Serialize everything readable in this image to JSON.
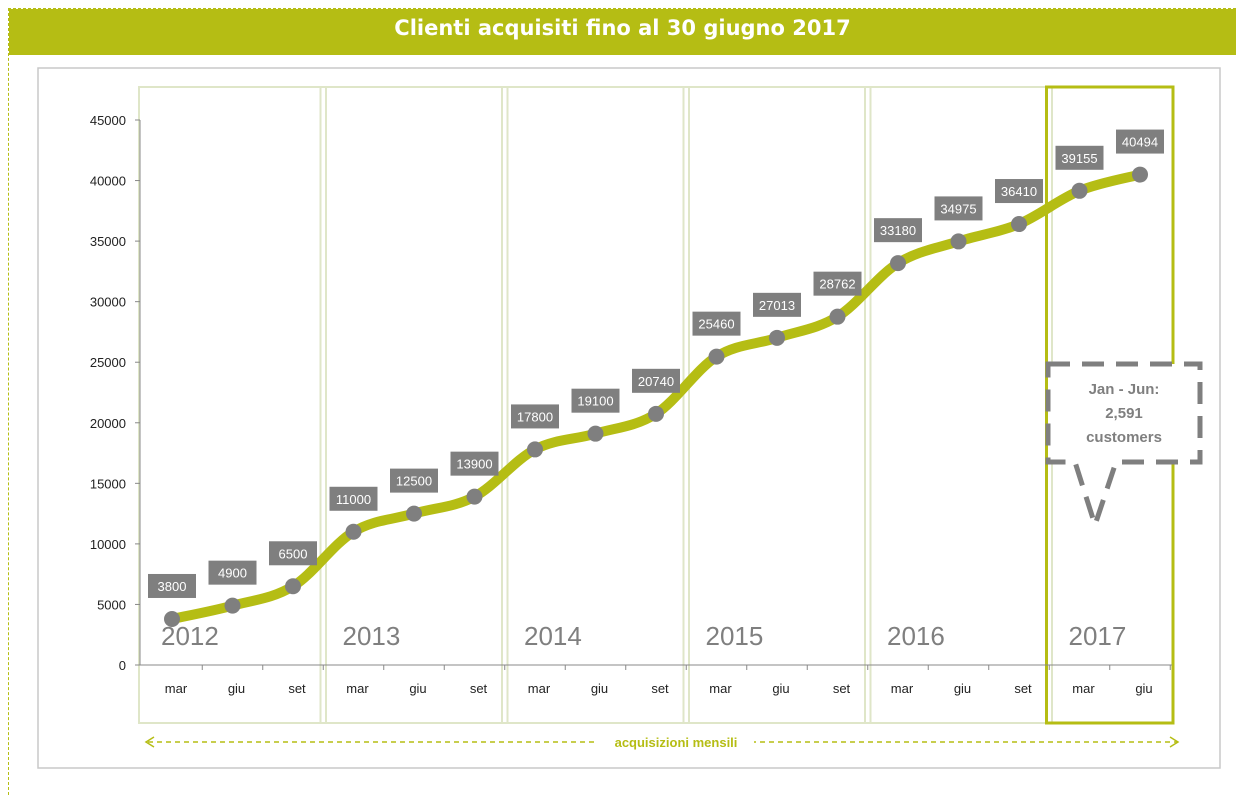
{
  "chart_data": {
    "type": "line",
    "title": "Clienti acquisiti fino al 30 giugno 2017",
    "x_label": "acquisizioni mensili",
    "categories": [
      "mar",
      "giu",
      "set",
      "mar",
      "giu",
      "set",
      "mar",
      "giu",
      "set",
      "mar",
      "giu",
      "set",
      "mar",
      "giu",
      "set",
      "mar",
      "giu"
    ],
    "groups": [
      "2012",
      "2013",
      "2014",
      "2015",
      "2016",
      "2017"
    ],
    "series": [
      {
        "name": "Clienti",
        "color": "#b5bd14",
        "values": [
          3800,
          4900,
          6500,
          11000,
          12500,
          13900,
          17800,
          19100,
          20740,
          25460,
          27013,
          28762,
          33180,
          34975,
          36410,
          39155,
          40494
        ]
      }
    ],
    "ylim": [
      0,
      45000
    ],
    "yticks": [
      0,
      5000,
      10000,
      15000,
      20000,
      25000,
      30000,
      35000,
      40000,
      45000
    ],
    "annotation": [
      "Jan - Jun:",
      "2,591",
      "customers"
    ]
  }
}
